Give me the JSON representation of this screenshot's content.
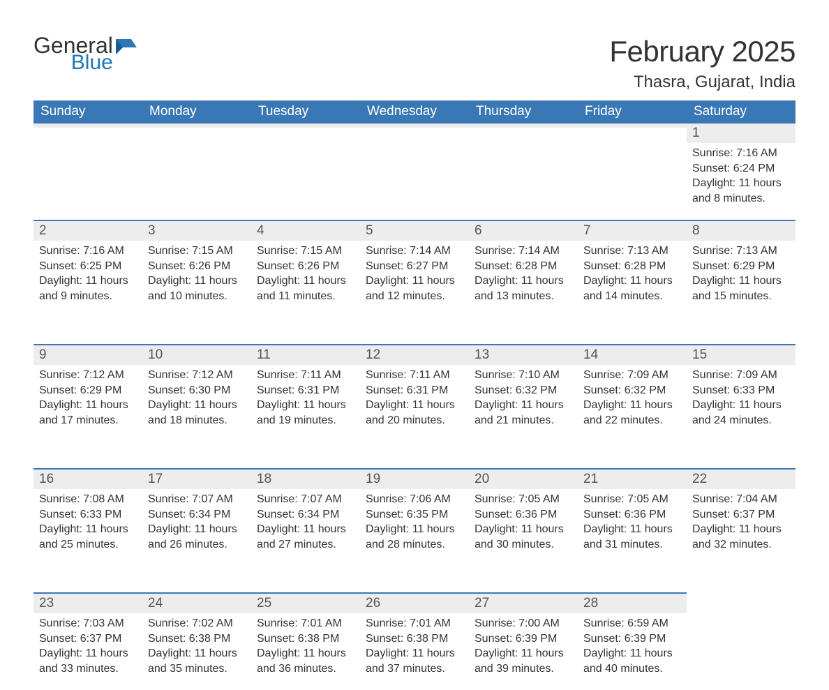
{
  "brand": {
    "word1": "General",
    "word2": "Blue",
    "flag_color": "#2f77b4"
  },
  "title": "February 2025",
  "subtitle": "Thasra, Gujarat, India",
  "colors": {
    "header_bg": "#3a78b5",
    "header_text": "#ffffff",
    "daynum_bg": "#ededed",
    "daynum_border_top": "#3a78b5",
    "body_text": "#333333",
    "daynum_text": "#555555",
    "page_bg": "#ffffff"
  },
  "fonts": {
    "title_pt": 42,
    "subtitle_pt": 24,
    "header_pt": 19,
    "body_pt": 16
  },
  "day_headers": [
    "Sunday",
    "Monday",
    "Tuesday",
    "Wednesday",
    "Thursday",
    "Friday",
    "Saturday"
  ],
  "weeks": [
    [
      null,
      null,
      null,
      null,
      null,
      null,
      {
        "n": "1",
        "sunrise": "Sunrise: 7:16 AM",
        "sunset": "Sunset: 6:24 PM",
        "daylight": "Daylight: 11 hours and 8 minutes."
      }
    ],
    [
      {
        "n": "2",
        "sunrise": "Sunrise: 7:16 AM",
        "sunset": "Sunset: 6:25 PM",
        "daylight": "Daylight: 11 hours and 9 minutes."
      },
      {
        "n": "3",
        "sunrise": "Sunrise: 7:15 AM",
        "sunset": "Sunset: 6:26 PM",
        "daylight": "Daylight: 11 hours and 10 minutes."
      },
      {
        "n": "4",
        "sunrise": "Sunrise: 7:15 AM",
        "sunset": "Sunset: 6:26 PM",
        "daylight": "Daylight: 11 hours and 11 minutes."
      },
      {
        "n": "5",
        "sunrise": "Sunrise: 7:14 AM",
        "sunset": "Sunset: 6:27 PM",
        "daylight": "Daylight: 11 hours and 12 minutes."
      },
      {
        "n": "6",
        "sunrise": "Sunrise: 7:14 AM",
        "sunset": "Sunset: 6:28 PM",
        "daylight": "Daylight: 11 hours and 13 minutes."
      },
      {
        "n": "7",
        "sunrise": "Sunrise: 7:13 AM",
        "sunset": "Sunset: 6:28 PM",
        "daylight": "Daylight: 11 hours and 14 minutes."
      },
      {
        "n": "8",
        "sunrise": "Sunrise: 7:13 AM",
        "sunset": "Sunset: 6:29 PM",
        "daylight": "Daylight: 11 hours and 15 minutes."
      }
    ],
    [
      {
        "n": "9",
        "sunrise": "Sunrise: 7:12 AM",
        "sunset": "Sunset: 6:29 PM",
        "daylight": "Daylight: 11 hours and 17 minutes."
      },
      {
        "n": "10",
        "sunrise": "Sunrise: 7:12 AM",
        "sunset": "Sunset: 6:30 PM",
        "daylight": "Daylight: 11 hours and 18 minutes."
      },
      {
        "n": "11",
        "sunrise": "Sunrise: 7:11 AM",
        "sunset": "Sunset: 6:31 PM",
        "daylight": "Daylight: 11 hours and 19 minutes."
      },
      {
        "n": "12",
        "sunrise": "Sunrise: 7:11 AM",
        "sunset": "Sunset: 6:31 PM",
        "daylight": "Daylight: 11 hours and 20 minutes."
      },
      {
        "n": "13",
        "sunrise": "Sunrise: 7:10 AM",
        "sunset": "Sunset: 6:32 PM",
        "daylight": "Daylight: 11 hours and 21 minutes."
      },
      {
        "n": "14",
        "sunrise": "Sunrise: 7:09 AM",
        "sunset": "Sunset: 6:32 PM",
        "daylight": "Daylight: 11 hours and 22 minutes."
      },
      {
        "n": "15",
        "sunrise": "Sunrise: 7:09 AM",
        "sunset": "Sunset: 6:33 PM",
        "daylight": "Daylight: 11 hours and 24 minutes."
      }
    ],
    [
      {
        "n": "16",
        "sunrise": "Sunrise: 7:08 AM",
        "sunset": "Sunset: 6:33 PM",
        "daylight": "Daylight: 11 hours and 25 minutes."
      },
      {
        "n": "17",
        "sunrise": "Sunrise: 7:07 AM",
        "sunset": "Sunset: 6:34 PM",
        "daylight": "Daylight: 11 hours and 26 minutes."
      },
      {
        "n": "18",
        "sunrise": "Sunrise: 7:07 AM",
        "sunset": "Sunset: 6:34 PM",
        "daylight": "Daylight: 11 hours and 27 minutes."
      },
      {
        "n": "19",
        "sunrise": "Sunrise: 7:06 AM",
        "sunset": "Sunset: 6:35 PM",
        "daylight": "Daylight: 11 hours and 28 minutes."
      },
      {
        "n": "20",
        "sunrise": "Sunrise: 7:05 AM",
        "sunset": "Sunset: 6:36 PM",
        "daylight": "Daylight: 11 hours and 30 minutes."
      },
      {
        "n": "21",
        "sunrise": "Sunrise: 7:05 AM",
        "sunset": "Sunset: 6:36 PM",
        "daylight": "Daylight: 11 hours and 31 minutes."
      },
      {
        "n": "22",
        "sunrise": "Sunrise: 7:04 AM",
        "sunset": "Sunset: 6:37 PM",
        "daylight": "Daylight: 11 hours and 32 minutes."
      }
    ],
    [
      {
        "n": "23",
        "sunrise": "Sunrise: 7:03 AM",
        "sunset": "Sunset: 6:37 PM",
        "daylight": "Daylight: 11 hours and 33 minutes."
      },
      {
        "n": "24",
        "sunrise": "Sunrise: 7:02 AM",
        "sunset": "Sunset: 6:38 PM",
        "daylight": "Daylight: 11 hours and 35 minutes."
      },
      {
        "n": "25",
        "sunrise": "Sunrise: 7:01 AM",
        "sunset": "Sunset: 6:38 PM",
        "daylight": "Daylight: 11 hours and 36 minutes."
      },
      {
        "n": "26",
        "sunrise": "Sunrise: 7:01 AM",
        "sunset": "Sunset: 6:38 PM",
        "daylight": "Daylight: 11 hours and 37 minutes."
      },
      {
        "n": "27",
        "sunrise": "Sunrise: 7:00 AM",
        "sunset": "Sunset: 6:39 PM",
        "daylight": "Daylight: 11 hours and 39 minutes."
      },
      {
        "n": "28",
        "sunrise": "Sunrise: 6:59 AM",
        "sunset": "Sunset: 6:39 PM",
        "daylight": "Daylight: 11 hours and 40 minutes."
      },
      null
    ]
  ]
}
